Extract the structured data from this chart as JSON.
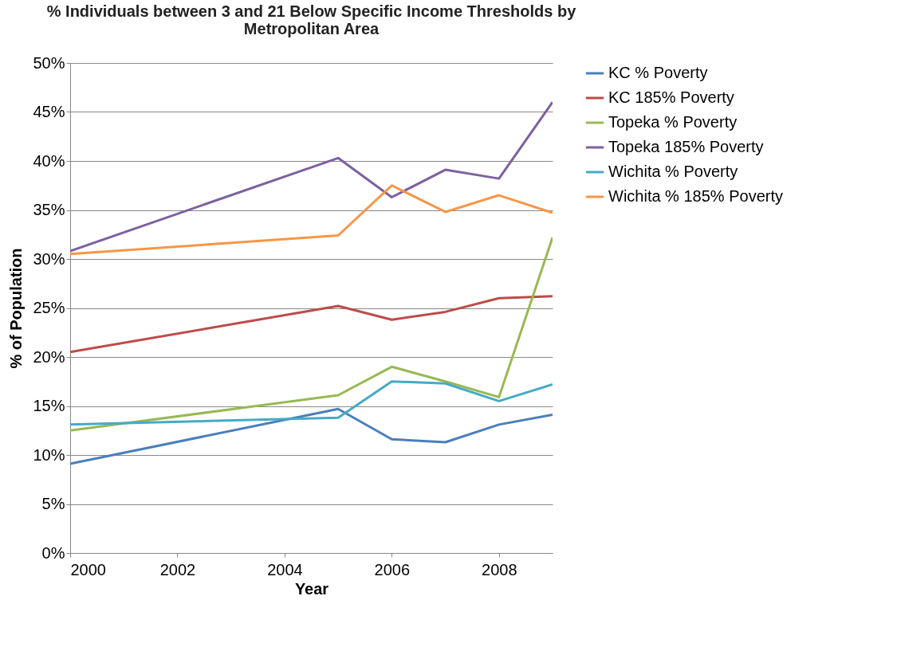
{
  "chart_data": {
    "type": "line",
    "title": "% Individuals between 3 and 21 Below Specific Income Thresholds by Metropolitan Area",
    "xlabel": "Year",
    "ylabel": "% of Population",
    "x": [
      2000,
      2005,
      2006,
      2007,
      2008,
      2009
    ],
    "series": [
      {
        "name": "KC % Poverty",
        "color": "#4a7ebb",
        "values": [
          9.1,
          14.7,
          11.6,
          11.3,
          13.1,
          14.1
        ]
      },
      {
        "name": "KC 185% Poverty",
        "color": "#be4b48",
        "values": [
          20.5,
          25.2,
          23.8,
          24.6,
          26.0,
          26.2
        ]
      },
      {
        "name": "Topeka % Poverty",
        "color": "#98b954",
        "values": [
          12.5,
          16.1,
          19.0,
          17.5,
          15.9,
          32.2
        ]
      },
      {
        "name": "Topeka 185% Poverty",
        "color": "#7d60a0",
        "values": [
          30.8,
          40.3,
          36.3,
          39.1,
          38.2,
          46.0
        ]
      },
      {
        "name": "Wichita % Poverty",
        "color": "#46aac5",
        "values": [
          13.1,
          13.8,
          17.5,
          17.3,
          15.5,
          17.2
        ]
      },
      {
        "name": "Wichita % 185% Poverty",
        "color": "#f79646",
        "values": [
          30.5,
          32.4,
          37.5,
          34.8,
          36.5,
          34.7
        ]
      }
    ],
    "xlim": [
      2000,
      2009
    ],
    "xticks": [
      2000,
      2002,
      2004,
      2006,
      2008
    ],
    "ylim": [
      0,
      50
    ],
    "yticks": [
      {
        "value": 0,
        "label": "0%"
      },
      {
        "value": 5,
        "label": "5%"
      },
      {
        "value": 10,
        "label": "10%"
      },
      {
        "value": 15,
        "label": "15%"
      },
      {
        "value": 20,
        "label": "20%"
      },
      {
        "value": 25,
        "label": "25%"
      },
      {
        "value": 30,
        "label": "30%"
      },
      {
        "value": 35,
        "label": "35%"
      },
      {
        "value": 40,
        "label": "40%"
      },
      {
        "value": 45,
        "label": "45%"
      },
      {
        "value": 50,
        "label": "50%"
      }
    ],
    "grid": "y",
    "legend": "right",
    "marker": "none",
    "line_style": "solid"
  }
}
